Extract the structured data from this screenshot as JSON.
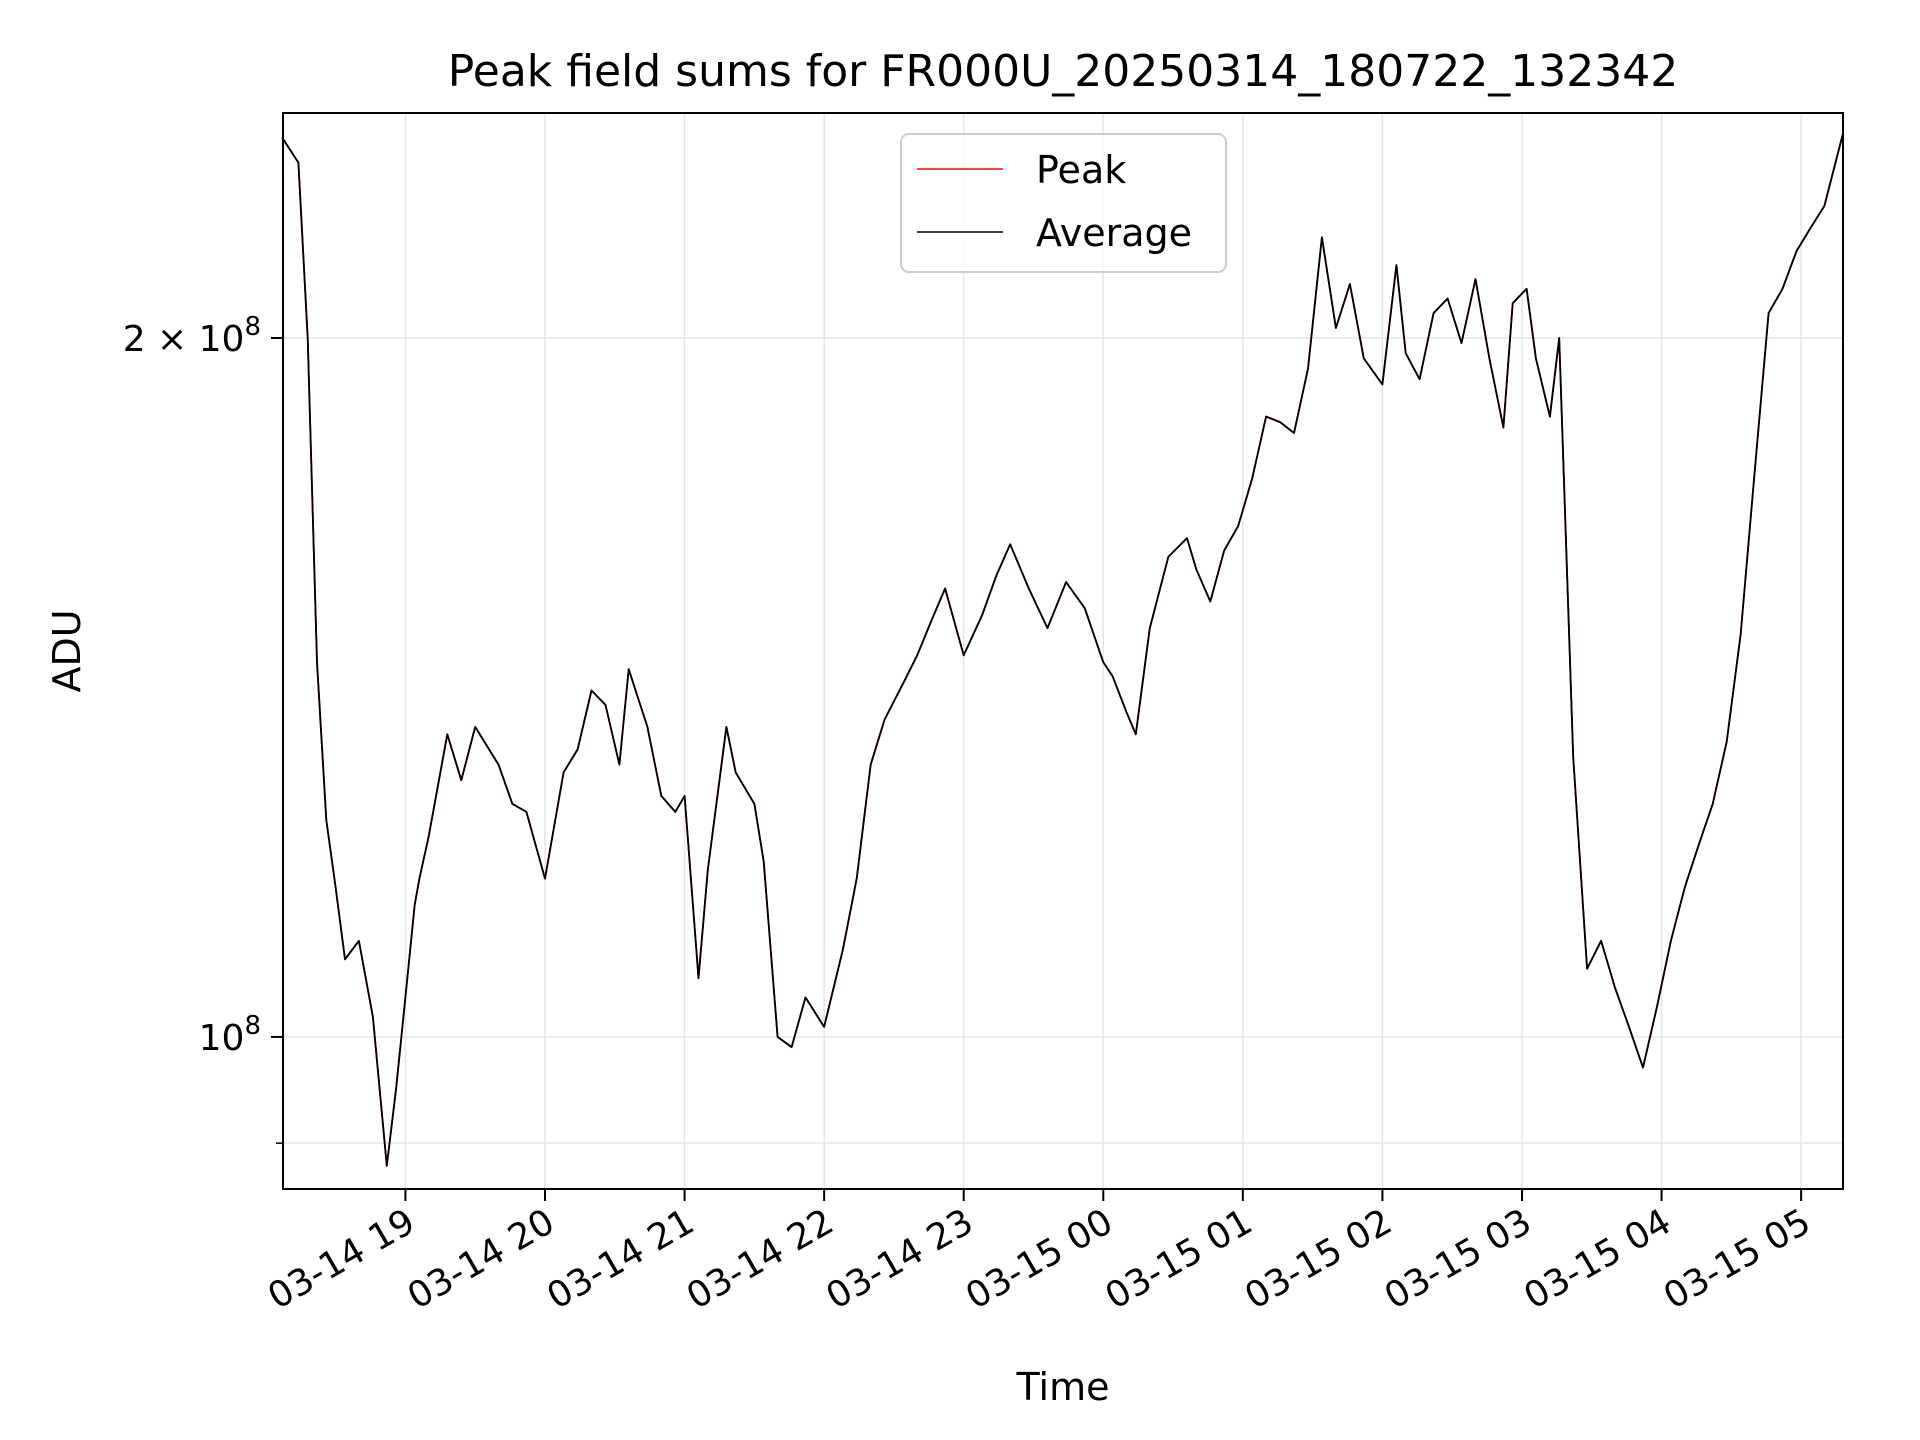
{
  "chart_data": {
    "type": "line",
    "title": "Peak field sums for FR000U_20250314_180722_132342",
    "xlabel": "Time",
    "ylabel": "ADU",
    "y_scale": "log",
    "y_ticks": [
      {
        "value": 100000000,
        "base": "10",
        "exp": "8",
        "mult": ""
      },
      {
        "value": 200000000,
        "base": "10",
        "exp": "8",
        "mult": "2 × "
      }
    ],
    "ylim": [
      86000000,
      250000000
    ],
    "xlim": [
      "2025-03-14T18:07:22",
      "2025-03-15T05:18:00"
    ],
    "x_ticks": [
      {
        "value": "2025-03-14T19:00",
        "label": "03-14 19"
      },
      {
        "value": "2025-03-14T20:00",
        "label": "03-14 20"
      },
      {
        "value": "2025-03-14T21:00",
        "label": "03-14 21"
      },
      {
        "value": "2025-03-14T22:00",
        "label": "03-14 22"
      },
      {
        "value": "2025-03-14T23:00",
        "label": "03-14 23"
      },
      {
        "value": "2025-03-15T00:00",
        "label": "03-15 00"
      },
      {
        "value": "2025-03-15T01:00",
        "label": "03-15 01"
      },
      {
        "value": "2025-03-15T02:00",
        "label": "03-15 02"
      },
      {
        "value": "2025-03-15T03:00",
        "label": "03-15 03"
      },
      {
        "value": "2025-03-15T04:00",
        "label": "03-15 04"
      },
      {
        "value": "2025-03-15T05:00",
        "label": "03-15 05"
      }
    ],
    "grid": true,
    "legend": {
      "position": "top-center",
      "entries": [
        "Peak",
        "Average"
      ]
    },
    "series": [
      {
        "name": "Peak",
        "color": "#ff0000",
        "x": [
          "2025-03-14T18:07",
          "2025-03-14T18:14",
          "2025-03-14T18:18",
          "2025-03-14T18:22",
          "2025-03-14T18:26",
          "2025-03-14T18:30",
          "2025-03-14T18:34",
          "2025-03-14T18:40",
          "2025-03-14T18:46",
          "2025-03-14T18:52",
          "2025-03-14T18:56",
          "2025-03-14T19:00",
          "2025-03-14T19:04",
          "2025-03-14T19:06",
          "2025-03-14T19:10",
          "2025-03-14T19:18",
          "2025-03-14T19:24",
          "2025-03-14T19:30",
          "2025-03-14T19:40",
          "2025-03-14T19:46",
          "2025-03-14T19:52",
          "2025-03-14T20:00",
          "2025-03-14T20:08",
          "2025-03-14T20:14",
          "2025-03-14T20:20",
          "2025-03-14T20:26",
          "2025-03-14T20:32",
          "2025-03-14T20:36",
          "2025-03-14T20:44",
          "2025-03-14T20:50",
          "2025-03-14T20:56",
          "2025-03-14T21:00",
          "2025-03-14T21:06",
          "2025-03-14T21:10",
          "2025-03-14T21:18",
          "2025-03-14T21:22",
          "2025-03-14T21:30",
          "2025-03-14T21:34",
          "2025-03-14T21:40",
          "2025-03-14T21:46",
          "2025-03-14T21:52",
          "2025-03-14T22:00",
          "2025-03-14T22:08",
          "2025-03-14T22:14",
          "2025-03-14T22:20",
          "2025-03-14T22:26",
          "2025-03-14T22:34",
          "2025-03-14T22:40",
          "2025-03-14T22:46",
          "2025-03-14T22:52",
          "2025-03-14T23:00",
          "2025-03-14T23:08",
          "2025-03-14T23:14",
          "2025-03-14T23:20",
          "2025-03-14T23:28",
          "2025-03-14T23:36",
          "2025-03-14T23:44",
          "2025-03-14T23:52",
          "2025-03-15T00:00",
          "2025-03-15T00:04",
          "2025-03-15T00:10",
          "2025-03-15T00:14",
          "2025-03-15T00:20",
          "2025-03-15T00:28",
          "2025-03-15T00:36",
          "2025-03-15T00:40",
          "2025-03-15T00:46",
          "2025-03-15T00:52",
          "2025-03-15T00:58",
          "2025-03-15T01:04",
          "2025-03-15T01:10",
          "2025-03-15T01:16",
          "2025-03-15T01:22",
          "2025-03-15T01:28",
          "2025-03-15T01:34",
          "2025-03-15T01:40",
          "2025-03-15T01:46",
          "2025-03-15T01:52",
          "2025-03-15T02:00",
          "2025-03-15T02:06",
          "2025-03-15T02:10",
          "2025-03-15T02:16",
          "2025-03-15T02:22",
          "2025-03-15T02:28",
          "2025-03-15T02:34",
          "2025-03-15T02:40",
          "2025-03-15T02:46",
          "2025-03-15T02:52",
          "2025-03-15T02:56",
          "2025-03-15T03:02",
          "2025-03-15T03:06",
          "2025-03-15T03:12",
          "2025-03-15T03:16",
          "2025-03-15T03:22",
          "2025-03-15T03:28",
          "2025-03-15T03:34",
          "2025-03-15T03:40",
          "2025-03-15T03:46",
          "2025-03-15T03:52",
          "2025-03-15T03:58",
          "2025-03-15T04:04",
          "2025-03-15T04:10",
          "2025-03-15T04:16",
          "2025-03-15T04:22",
          "2025-03-15T04:28",
          "2025-03-15T04:34",
          "2025-03-15T04:40",
          "2025-03-15T04:46",
          "2025-03-15T04:52",
          "2025-03-15T04:58",
          "2025-03-15T05:04",
          "2025-03-15T05:10",
          "2025-03-15T05:18"
        ],
        "y": [
          244000000,
          238000000,
          200000000,
          145000000,
          124000000,
          116000000,
          108000000,
          110000000,
          102000000,
          88000000,
          95000000,
          104000000,
          114000000,
          117000000,
          122000000,
          135000000,
          129000000,
          136000000,
          131000000,
          126000000,
          125000000,
          117000000,
          130000000,
          133000000,
          141000000,
          139000000,
          131000000,
          144000000,
          136000000,
          127000000,
          125000000,
          127000000,
          106000000,
          118000000,
          136000000,
          130000000,
          126000000,
          119000000,
          100000000,
          99000000,
          104000000,
          101000000,
          109000000,
          117000000,
          131000000,
          137000000,
          142000000,
          146000000,
          151000000,
          156000000,
          146000000,
          152000000,
          158000000,
          163000000,
          156000000,
          150000000,
          157000000,
          153000000,
          145000000,
          143000000,
          138000000,
          135000000,
          150000000,
          161000000,
          164000000,
          159000000,
          154000000,
          162000000,
          166000000,
          174000000,
          185000000,
          184000000,
          182000000,
          194000000,
          221000000,
          202000000,
          211000000,
          196000000,
          191000000,
          215000000,
          197000000,
          192000000,
          205000000,
          208000000,
          199000000,
          212000000,
          196000000,
          183000000,
          207000000,
          210000000,
          196000000,
          185000000,
          200000000,
          132000000,
          107000000,
          110000000,
          105000000,
          101000000,
          97000000,
          103000000,
          110000000,
          116000000,
          121000000,
          126000000,
          134000000,
          149000000,
          175000000,
          205000000,
          210000000,
          218000000,
          223000000,
          228000000,
          245000000
        ]
      },
      {
        "name": "Average",
        "color": "#000000",
        "x": [
          "2025-03-14T18:07",
          "2025-03-14T18:14",
          "2025-03-14T18:18",
          "2025-03-14T18:22",
          "2025-03-14T18:26",
          "2025-03-14T18:30",
          "2025-03-14T18:34",
          "2025-03-14T18:40",
          "2025-03-14T18:46",
          "2025-03-14T18:52",
          "2025-03-14T18:56",
          "2025-03-14T19:00",
          "2025-03-14T19:04",
          "2025-03-14T19:06",
          "2025-03-14T19:10",
          "2025-03-14T19:18",
          "2025-03-14T19:24",
          "2025-03-14T19:30",
          "2025-03-14T19:40",
          "2025-03-14T19:46",
          "2025-03-14T19:52",
          "2025-03-14T20:00",
          "2025-03-14T20:08",
          "2025-03-14T20:14",
          "2025-03-14T20:20",
          "2025-03-14T20:26",
          "2025-03-14T20:32",
          "2025-03-14T20:36",
          "2025-03-14T20:44",
          "2025-03-14T20:50",
          "2025-03-14T20:56",
          "2025-03-14T21:00",
          "2025-03-14T21:06",
          "2025-03-14T21:10",
          "2025-03-14T21:18",
          "2025-03-14T21:22",
          "2025-03-14T21:30",
          "2025-03-14T21:34",
          "2025-03-14T21:40",
          "2025-03-14T21:46",
          "2025-03-14T21:52",
          "2025-03-14T22:00",
          "2025-03-14T22:08",
          "2025-03-14T22:14",
          "2025-03-14T22:20",
          "2025-03-14T22:26",
          "2025-03-14T22:34",
          "2025-03-14T22:40",
          "2025-03-14T22:46",
          "2025-03-14T22:52",
          "2025-03-14T23:00",
          "2025-03-14T23:08",
          "2025-03-14T23:14",
          "2025-03-14T23:20",
          "2025-03-14T23:28",
          "2025-03-14T23:36",
          "2025-03-14T23:44",
          "2025-03-14T23:52",
          "2025-03-15T00:00",
          "2025-03-15T00:04",
          "2025-03-15T00:10",
          "2025-03-15T00:14",
          "2025-03-15T00:20",
          "2025-03-15T00:28",
          "2025-03-15T00:36",
          "2025-03-15T00:40",
          "2025-03-15T00:46",
          "2025-03-15T00:52",
          "2025-03-15T00:58",
          "2025-03-15T01:04",
          "2025-03-15T01:10",
          "2025-03-15T01:16",
          "2025-03-15T01:22",
          "2025-03-15T01:28",
          "2025-03-15T01:34",
          "2025-03-15T01:40",
          "2025-03-15T01:46",
          "2025-03-15T01:52",
          "2025-03-15T02:00",
          "2025-03-15T02:06",
          "2025-03-15T02:10",
          "2025-03-15T02:16",
          "2025-03-15T02:22",
          "2025-03-15T02:28",
          "2025-03-15T02:34",
          "2025-03-15T02:40",
          "2025-03-15T02:46",
          "2025-03-15T02:52",
          "2025-03-15T02:56",
          "2025-03-15T03:02",
          "2025-03-15T03:06",
          "2025-03-15T03:12",
          "2025-03-15T03:16",
          "2025-03-15T03:22",
          "2025-03-15T03:28",
          "2025-03-15T03:34",
          "2025-03-15T03:40",
          "2025-03-15T03:46",
          "2025-03-15T03:52",
          "2025-03-15T03:58",
          "2025-03-15T04:04",
          "2025-03-15T04:10",
          "2025-03-15T04:16",
          "2025-03-15T04:22",
          "2025-03-15T04:28",
          "2025-03-15T04:34",
          "2025-03-15T04:40",
          "2025-03-15T04:46",
          "2025-03-15T04:52",
          "2025-03-15T04:58",
          "2025-03-15T05:04",
          "2025-03-15T05:10",
          "2025-03-15T05:18"
        ],
        "y": [
          244000000,
          238000000,
          200000000,
          145000000,
          124000000,
          116000000,
          108000000,
          110000000,
          102000000,
          88000000,
          95000000,
          104000000,
          114000000,
          117000000,
          122000000,
          135000000,
          129000000,
          136000000,
          131000000,
          126000000,
          125000000,
          117000000,
          130000000,
          133000000,
          141000000,
          139000000,
          131000000,
          144000000,
          136000000,
          127000000,
          125000000,
          127000000,
          106000000,
          118000000,
          136000000,
          130000000,
          126000000,
          119000000,
          100000000,
          99000000,
          104000000,
          101000000,
          109000000,
          117000000,
          131000000,
          137000000,
          142000000,
          146000000,
          151000000,
          156000000,
          146000000,
          152000000,
          158000000,
          163000000,
          156000000,
          150000000,
          157000000,
          153000000,
          145000000,
          143000000,
          138000000,
          135000000,
          150000000,
          161000000,
          164000000,
          159000000,
          154000000,
          162000000,
          166000000,
          174000000,
          185000000,
          184000000,
          182000000,
          194000000,
          221000000,
          202000000,
          211000000,
          196000000,
          191000000,
          215000000,
          197000000,
          192000000,
          205000000,
          208000000,
          199000000,
          212000000,
          196000000,
          183000000,
          207000000,
          210000000,
          196000000,
          185000000,
          200000000,
          132000000,
          107000000,
          110000000,
          105000000,
          101000000,
          97000000,
          103000000,
          110000000,
          116000000,
          121000000,
          126000000,
          134000000,
          149000000,
          175000000,
          205000000,
          210000000,
          218000000,
          223000000,
          228000000,
          245000000
        ]
      }
    ]
  }
}
